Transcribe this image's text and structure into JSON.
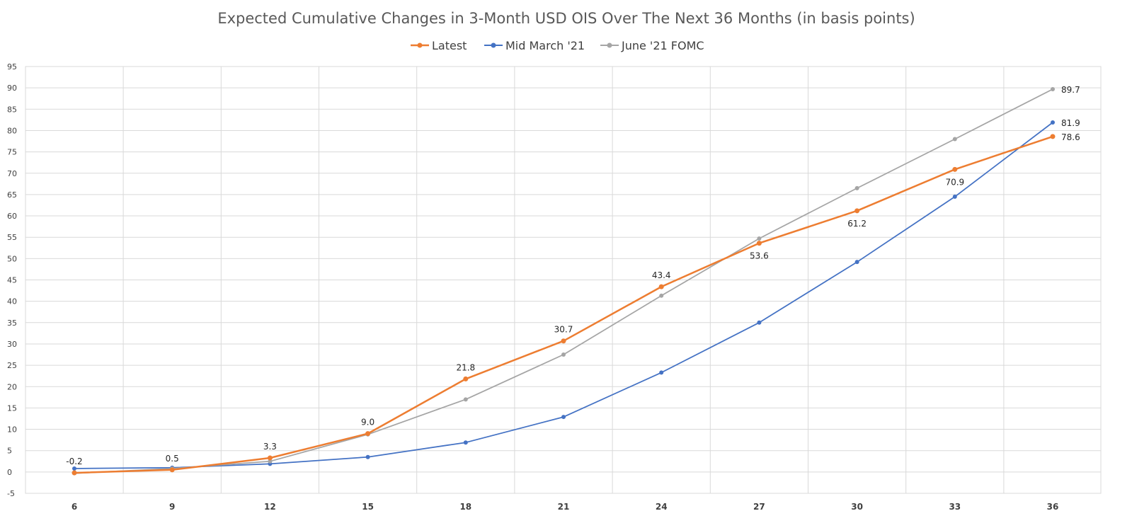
{
  "chart_data": {
    "type": "line",
    "title": "Expected Cumulative Changes in 3-Month USD OIS Over The Next 36 Months (in basis points)",
    "xlabel": "",
    "ylabel": "",
    "x": [
      6,
      9,
      12,
      15,
      18,
      21,
      24,
      27,
      30,
      33,
      36
    ],
    "x_tick_labels": [
      "6",
      "9",
      "12",
      "15",
      "18",
      "21",
      "24",
      "27",
      "30",
      "33",
      "36"
    ],
    "ylim": [
      -5,
      95
    ],
    "y_ticks": [
      -5,
      0,
      5,
      10,
      15,
      20,
      25,
      30,
      35,
      40,
      45,
      50,
      55,
      60,
      65,
      70,
      75,
      80,
      85,
      90,
      95
    ],
    "grid": true,
    "legend_position": "top-center",
    "series": [
      {
        "name": "Latest",
        "color": "#ed7d31",
        "values": [
          -0.2,
          0.5,
          3.3,
          9.0,
          21.8,
          30.7,
          43.4,
          53.6,
          61.2,
          70.9,
          78.6
        ],
        "labels": [
          "-0.2",
          "0.5",
          "3.3",
          "9.0",
          "21.8",
          "30.7",
          "43.4",
          "53.6",
          "61.2",
          "70.9",
          "78.6"
        ],
        "label_positions": [
          "above",
          "above",
          "above",
          "above",
          "above",
          "above",
          "above",
          "below",
          "below",
          "below",
          "right"
        ]
      },
      {
        "name": "Mid March '21",
        "color": "#4472c4",
        "values": [
          0.8,
          1.0,
          1.9,
          3.5,
          6.9,
          12.9,
          23.3,
          35.0,
          49.2,
          64.5,
          81.9
        ],
        "labels": [
          "",
          "",
          "",
          "",
          "",
          "",
          "",
          "",
          "",
          "",
          "81.9"
        ],
        "label_positions": [
          "",
          "",
          "",
          "",
          "",
          "",
          "",
          "",
          "",
          "",
          "right"
        ]
      },
      {
        "name": "June '21 FOMC",
        "color": "#a5a5a5",
        "values": [
          -0.3,
          0.8,
          2.5,
          8.8,
          17.0,
          27.5,
          41.3,
          54.7,
          66.5,
          78.0,
          89.7
        ],
        "labels": [
          "",
          "",
          "",
          "",
          "",
          "",
          "",
          "",
          "",
          "",
          "89.7"
        ],
        "label_positions": [
          "",
          "",
          "",
          "",
          "",
          "",
          "",
          "",
          "",
          "",
          "right"
        ]
      }
    ]
  }
}
